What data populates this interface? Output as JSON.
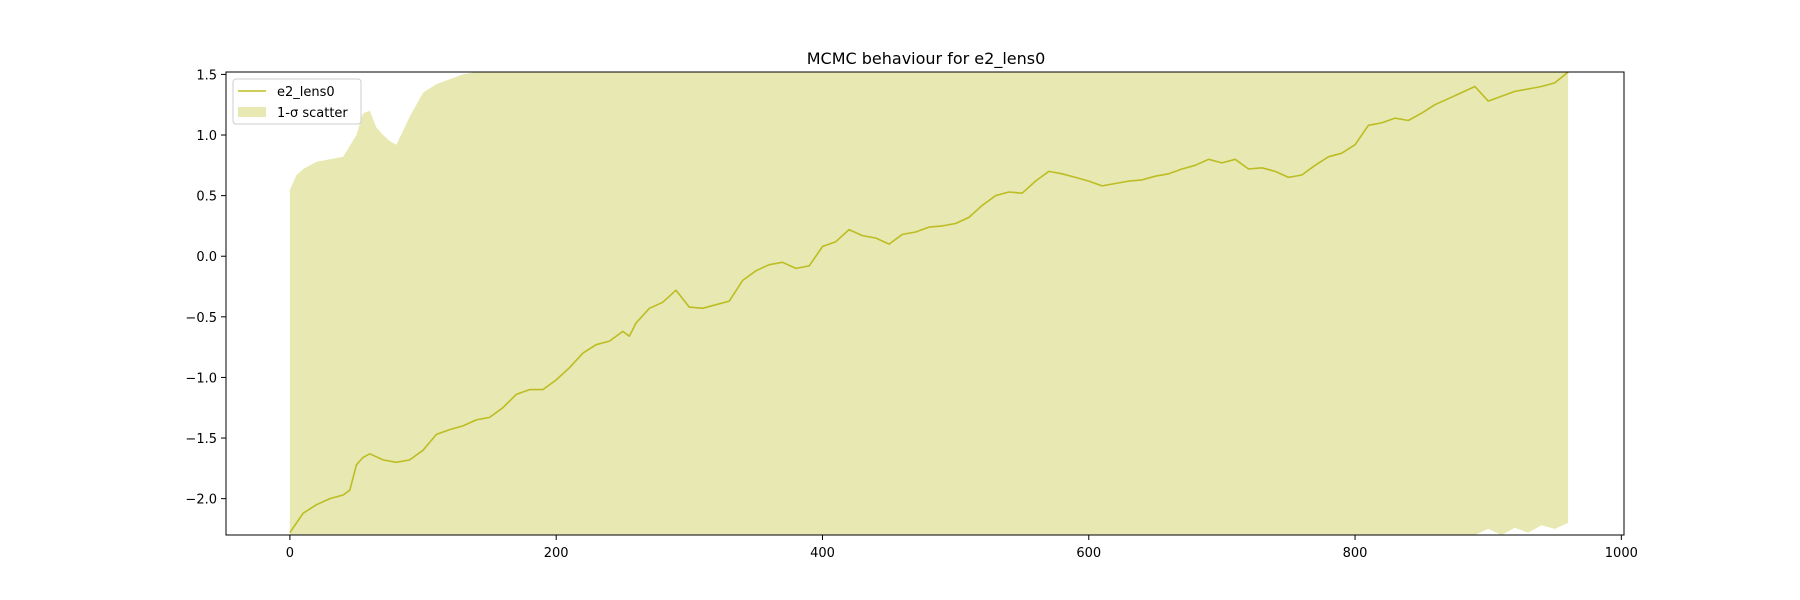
{
  "chart_data": {
    "type": "line",
    "title": "MCMC behaviour for e2_lens0",
    "xlabel": "",
    "ylabel": "",
    "xlim": [
      -48,
      1002
    ],
    "ylim": [
      -2.3,
      1.52
    ],
    "x_ticks": [
      0,
      200,
      400,
      600,
      800,
      1000
    ],
    "x_tick_labels": [
      "0",
      "200",
      "400",
      "600",
      "800",
      "1000"
    ],
    "y_ticks": [
      1.5,
      1.0,
      0.5,
      0.0,
      -0.5,
      -1.0,
      -1.5,
      -2.0
    ],
    "y_tick_labels": [
      "1.5",
      "1.0",
      "0.5",
      "0.0",
      "−0.5",
      "−1.0",
      "−1.5",
      "−2.0"
    ],
    "grid": false,
    "legend_position": "top-left",
    "legend": [
      {
        "label": "e2_lens0",
        "kind": "line"
      },
      {
        "label": "1-σ scatter",
        "kind": "band"
      }
    ],
    "colors": {
      "line": "#bcbd22",
      "band": "#bcbd22",
      "band_opacity": 0.35
    },
    "series": [
      {
        "name": "e2_lens0",
        "x": [
          0,
          10,
          20,
          30,
          40,
          45,
          50,
          55,
          60,
          70,
          80,
          90,
          100,
          110,
          120,
          130,
          140,
          150,
          160,
          170,
          180,
          190,
          200,
          210,
          220,
          230,
          240,
          250,
          255,
          260,
          270,
          280,
          290,
          300,
          310,
          320,
          330,
          340,
          350,
          360,
          370,
          380,
          390,
          400,
          410,
          420,
          430,
          440,
          450,
          460,
          470,
          480,
          490,
          500,
          510,
          520,
          530,
          540,
          550,
          560,
          570,
          580,
          590,
          600,
          610,
          620,
          630,
          640,
          650,
          660,
          670,
          680,
          690,
          700,
          710,
          720,
          730,
          740,
          750,
          760,
          770,
          780,
          790,
          800,
          810,
          820,
          830,
          840,
          850,
          860,
          870,
          880,
          890,
          900,
          910,
          920,
          930,
          940,
          950,
          960
        ],
        "y": [
          -2.28,
          -2.12,
          -2.05,
          -2.0,
          -1.97,
          -1.93,
          -1.72,
          -1.66,
          -1.63,
          -1.68,
          -1.7,
          -1.68,
          -1.6,
          -1.47,
          -1.43,
          -1.4,
          -1.35,
          -1.33,
          -1.25,
          -1.14,
          -1.1,
          -1.1,
          -1.02,
          -0.92,
          -0.8,
          -0.73,
          -0.7,
          -0.62,
          -0.66,
          -0.55,
          -0.43,
          -0.38,
          -0.28,
          -0.42,
          -0.43,
          -0.4,
          -0.37,
          -0.2,
          -0.12,
          -0.07,
          -0.05,
          -0.1,
          -0.08,
          0.08,
          0.12,
          0.22,
          0.17,
          0.15,
          0.1,
          0.18,
          0.2,
          0.24,
          0.25,
          0.27,
          0.32,
          0.42,
          0.5,
          0.53,
          0.52,
          0.62,
          0.7,
          0.68,
          0.65,
          0.62,
          0.58,
          0.6,
          0.62,
          0.63,
          0.66,
          0.68,
          0.72,
          0.75,
          0.8,
          0.77,
          0.8,
          0.72,
          0.73,
          0.7,
          0.65,
          0.67,
          0.75,
          0.82,
          0.85,
          0.92,
          1.08,
          1.1,
          1.14,
          1.12,
          1.18,
          1.25,
          1.3,
          1.35,
          1.4,
          1.28,
          1.32,
          1.36,
          1.38,
          1.4,
          1.43,
          1.52
        ]
      }
    ],
    "band": {
      "name": "1-σ scatter",
      "x": [
        0,
        5,
        10,
        20,
        30,
        40,
        50,
        55,
        60,
        65,
        70,
        75,
        80,
        90,
        100,
        110,
        120,
        130,
        140,
        150,
        160,
        200,
        400,
        600,
        800,
        850,
        860,
        870,
        880,
        890,
        900,
        910,
        920,
        930,
        940,
        950,
        960
      ],
      "upper": [
        0.55,
        0.67,
        0.72,
        0.78,
        0.8,
        0.82,
        1.0,
        1.18,
        1.2,
        1.06,
        1.0,
        0.95,
        0.92,
        1.15,
        1.35,
        1.42,
        1.46,
        1.5,
        1.52,
        1.52,
        1.52,
        1.52,
        1.52,
        1.52,
        1.52,
        1.52,
        1.52,
        1.52,
        1.52,
        1.52,
        1.52,
        1.52,
        1.52,
        1.52,
        1.52,
        1.52,
        1.52
      ],
      "lower": [
        -2.3,
        -2.3,
        -2.3,
        -2.3,
        -2.3,
        -2.3,
        -2.3,
        -2.3,
        -2.3,
        -2.3,
        -2.3,
        -2.3,
        -2.3,
        -2.3,
        -2.3,
        -2.3,
        -2.3,
        -2.3,
        -2.3,
        -2.3,
        -2.3,
        -2.3,
        -2.3,
        -2.3,
        -2.3,
        -2.3,
        -2.3,
        -2.3,
        -2.3,
        -2.3,
        -2.25,
        -2.3,
        -2.24,
        -2.28,
        -2.22,
        -2.25,
        -2.2
      ]
    }
  }
}
